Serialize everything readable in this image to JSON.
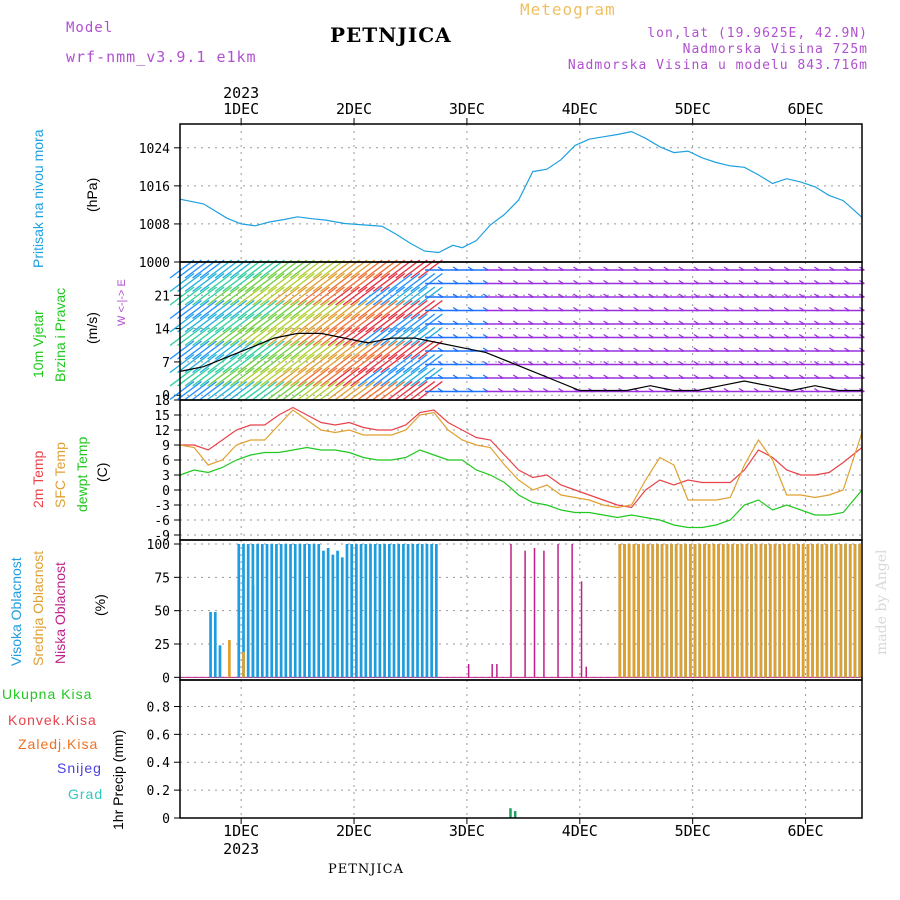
{
  "header": {
    "model_label": "Model",
    "model_name": "wrf-nmm_v3.9.1 e1km",
    "station": "PETNJICA",
    "meteogram": "Meteogram",
    "lonlat": "lon,lat (19.9625E, 42.9N)",
    "elevation": "Nadmorska Visina 725m",
    "model_elevation": "Nadmorska Visina u modelu 843.716m",
    "footer_station": "PETNJICA",
    "signature": "made by Angel"
  },
  "colors": {
    "pressure": "#1fa0e0",
    "temp2m": "#e8424a",
    "sfc": "#e0a030",
    "dewpt": "#20c820",
    "high_cloud": "#1d9de0",
    "mid_cloud": "#e0a030",
    "low_cloud": "#c0208a",
    "model": "#b050d0",
    "meteogram": "#f0c060"
  },
  "time_axis": {
    "year": "2023",
    "dates": [
      "1DEC",
      "2DEC",
      "3DEC",
      "4DEC",
      "5DEC",
      "6DEC"
    ],
    "hours_range": [
      -13,
      132
    ]
  },
  "panel_labels": {
    "pressure": {
      "title": "Pritisak na nivou mora",
      "unit": "(hPa)"
    },
    "wind": {
      "t1": "10m Vjetar",
      "t2": "Brzina i Pravac",
      "unit": "(m/s)",
      "dir": "W <-|-> E"
    },
    "temp": {
      "t1": "2m Temp",
      "t2": "SFC Temp",
      "t3": "dewpt Temp",
      "unit": "(C)"
    },
    "cloud": {
      "t1": "Visoka Oblacnost",
      "t2": "Srednja Oblacnost",
      "t3": "Niska Oblacnost",
      "unit": "(%)"
    },
    "precip": {
      "l1": "Ukupna Kisa",
      "l2": "Konvek.Kisa",
      "l3": "Zaledj.Kisa",
      "l4": "Snijeg",
      "l5": "Grad",
      "unit": "1hr Precip (mm)"
    }
  },
  "chart_data": [
    {
      "type": "line",
      "ylabel": "(hPa)",
      "ylim": [
        1000,
        1029
      ],
      "yticks": [
        1000,
        1008,
        1016,
        1024
      ],
      "series": [
        {
          "name": "Pritisak na nivou mora",
          "x": [
            -13,
            -8,
            -3,
            0,
            3,
            6,
            9,
            12,
            15,
            18,
            22,
            26,
            30,
            33,
            36,
            39,
            42,
            45,
            47,
            50,
            53,
            56,
            59,
            62,
            65,
            68,
            71,
            74,
            77,
            80,
            83,
            86,
            89,
            92,
            95,
            98,
            101,
            104,
            107,
            110,
            113,
            116,
            119,
            122,
            125,
            128,
            132
          ],
          "y": [
            1013.2,
            1012.2,
            1009.2,
            1008,
            1007.6,
            1008.4,
            1008.9,
            1009.5,
            1009.1,
            1008.8,
            1008.1,
            1007.8,
            1007.5,
            1005.8,
            1003.9,
            1002.3,
            1002.0,
            1003.5,
            1003.0,
            1004.5,
            1007.8,
            1010,
            1013,
            1019,
            1019.5,
            1021.5,
            1024.5,
            1025.8,
            1026.3,
            1026.8,
            1027.4,
            1026.0,
            1024.2,
            1023.0,
            1023.3,
            1021.9,
            1020.9,
            1020.2,
            1019.9,
            1018.3,
            1016.5,
            1017.5,
            1016.8,
            1015.8,
            1014.0,
            1012.9,
            1009.4
          ]
        }
      ]
    },
    {
      "type": "line",
      "ylabel": "(m/s)",
      "ylim": [
        -1,
        28
      ],
      "yticks": [
        0,
        7,
        14,
        21
      ],
      "series": [
        {
          "name": "10m Vjetar Brzina i Pravac",
          "x": [
            -13,
            -8,
            -3,
            2,
            7,
            12,
            17,
            22,
            27,
            32,
            37,
            42,
            47,
            52,
            57,
            62,
            67,
            72,
            77,
            82,
            87,
            92,
            97,
            102,
            107,
            112,
            117,
            122,
            127,
            132
          ],
          "y": [
            5,
            6,
            8,
            10,
            12,
            13,
            13,
            12,
            11,
            12,
            12,
            11,
            10,
            9,
            7,
            5,
            3,
            1,
            1,
            1,
            2,
            1,
            1,
            2,
            3,
            2,
            1,
            2,
            1,
            1
          ]
        }
      ]
    },
    {
      "type": "line",
      "ylabel": "(C)",
      "ylim": [
        -10,
        18
      ],
      "yticks": [
        -9,
        -6,
        -3,
        0,
        3,
        6,
        9,
        12,
        15,
        18
      ],
      "series": [
        {
          "name": "2m Temp",
          "x": [
            -13,
            -10,
            -7,
            -4,
            -1,
            2,
            5,
            8,
            11,
            14,
            17,
            20,
            23,
            26,
            29,
            32,
            35,
            38,
            41,
            44,
            47,
            50,
            53,
            56,
            59,
            62,
            65,
            68,
            71,
            74,
            77,
            80,
            83,
            86,
            89,
            92,
            95,
            98,
            101,
            104,
            107,
            110,
            113,
            116,
            119,
            122,
            125,
            128,
            132
          ],
          "y": [
            9,
            9,
            8,
            10,
            12,
            13,
            13,
            15,
            16.5,
            15,
            13.5,
            13,
            13.5,
            12.5,
            12,
            12,
            13,
            15.5,
            16,
            13.5,
            12,
            10.5,
            10,
            7,
            4,
            2.5,
            3,
            1,
            0,
            -1,
            -2,
            -3,
            -3.5,
            0,
            2,
            1,
            2,
            1.5,
            1.5,
            1.5,
            4,
            8,
            6.5,
            4,
            3,
            3,
            3.5,
            5.5,
            8.5
          ]
        },
        {
          "name": "SFC Temp",
          "x": [
            -13,
            -10,
            -7,
            -4,
            -1,
            2,
            5,
            8,
            11,
            14,
            17,
            20,
            23,
            26,
            29,
            32,
            35,
            38,
            41,
            44,
            47,
            50,
            53,
            56,
            59,
            62,
            65,
            68,
            71,
            74,
            77,
            80,
            83,
            86,
            89,
            92,
            95,
            98,
            101,
            104,
            107,
            110,
            113,
            116,
            119,
            122,
            125,
            128,
            132
          ],
          "y": [
            9,
            8.5,
            5,
            6,
            9,
            10,
            10,
            13,
            16,
            14,
            12,
            11.5,
            12,
            11,
            11,
            11,
            12,
            15,
            15.5,
            12,
            10,
            9,
            8.5,
            5,
            2,
            0,
            1,
            -1,
            -1.5,
            -2,
            -3,
            -3.5,
            -3,
            2,
            6.5,
            5,
            -2,
            -2,
            -2,
            -1.5,
            5,
            10,
            6,
            -1,
            -1,
            -1.5,
            -1,
            0,
            11.5
          ]
        },
        {
          "name": "dewpt Temp",
          "x": [
            -13,
            -10,
            -7,
            -4,
            -1,
            2,
            5,
            8,
            11,
            14,
            17,
            20,
            23,
            26,
            29,
            32,
            35,
            38,
            41,
            44,
            47,
            50,
            53,
            56,
            59,
            62,
            65,
            68,
            71,
            74,
            77,
            80,
            83,
            86,
            89,
            92,
            95,
            98,
            101,
            104,
            107,
            110,
            113,
            116,
            119,
            122,
            125,
            128,
            132
          ],
          "y": [
            3,
            4,
            3.5,
            4.5,
            6,
            7,
            7.5,
            7.5,
            8,
            8.5,
            8,
            8,
            7.5,
            6.5,
            6,
            6,
            6.5,
            8,
            7,
            6,
            6,
            4,
            3,
            1.5,
            -1,
            -2.5,
            -3,
            -4,
            -4.5,
            -4.5,
            -5,
            -5.5,
            -5,
            -5.5,
            -6,
            -7,
            -7.5,
            -7.5,
            -7,
            -6,
            -3,
            -2,
            -4,
            -3,
            -4,
            -5,
            -5,
            -4.5,
            0
          ]
        }
      ]
    },
    {
      "type": "bar",
      "ylabel": "(%)",
      "ylim": [
        -2,
        103
      ],
      "yticks": [
        0,
        25,
        50,
        75,
        100
      ],
      "series": [
        {
          "name": "Visoka Oblacnost",
          "ranges": [
            [
              -7,
              -6,
              49
            ],
            [
              -6,
              -5,
              49
            ],
            [
              -5,
              -4,
              24
            ],
            [
              -1,
              0,
              100
            ],
            [
              0,
              13,
              100
            ],
            [
              2,
              3,
              69
            ],
            [
              13,
              17,
              100
            ],
            [
              17,
              18,
              95
            ],
            [
              18,
              19,
              97
            ],
            [
              19,
              20,
              92
            ],
            [
              20,
              21,
              95
            ],
            [
              21,
              22,
              90
            ],
            [
              22,
              26,
              100
            ],
            [
              26,
              28,
              100
            ],
            [
              28,
              42,
              100
            ],
            [
              80,
              132,
              100
            ]
          ]
        },
        {
          "name": "Srednja Oblacnost",
          "ranges": [
            [
              -3,
              -2,
              28
            ],
            [
              0,
              1,
              19
            ],
            [
              80,
              132,
              100
            ]
          ]
        },
        {
          "name": "Niska Oblacnost",
          "ranges": [
            [
              48,
              49,
              10
            ],
            [
              53,
              54,
              10
            ],
            [
              54,
              55,
              10
            ],
            [
              57,
              58,
              100
            ],
            [
              60,
              61,
              95
            ],
            [
              62,
              63,
              97
            ],
            [
              64,
              65,
              95
            ],
            [
              67,
              68,
              100
            ],
            [
              70,
              71,
              100
            ],
            [
              72,
              73,
              72
            ],
            [
              73,
              74,
              8
            ]
          ]
        }
      ]
    },
    {
      "type": "bar",
      "ylabel": "1hr Precip (mm)",
      "ylim": [
        0,
        0.99
      ],
      "yticks": [
        0,
        0.2,
        0.4,
        0.6,
        0.8
      ],
      "series": [
        {
          "name": "Ukupna Kisa",
          "x": [
            57,
            58
          ],
          "y": [
            0.07,
            0.05
          ]
        }
      ]
    }
  ]
}
